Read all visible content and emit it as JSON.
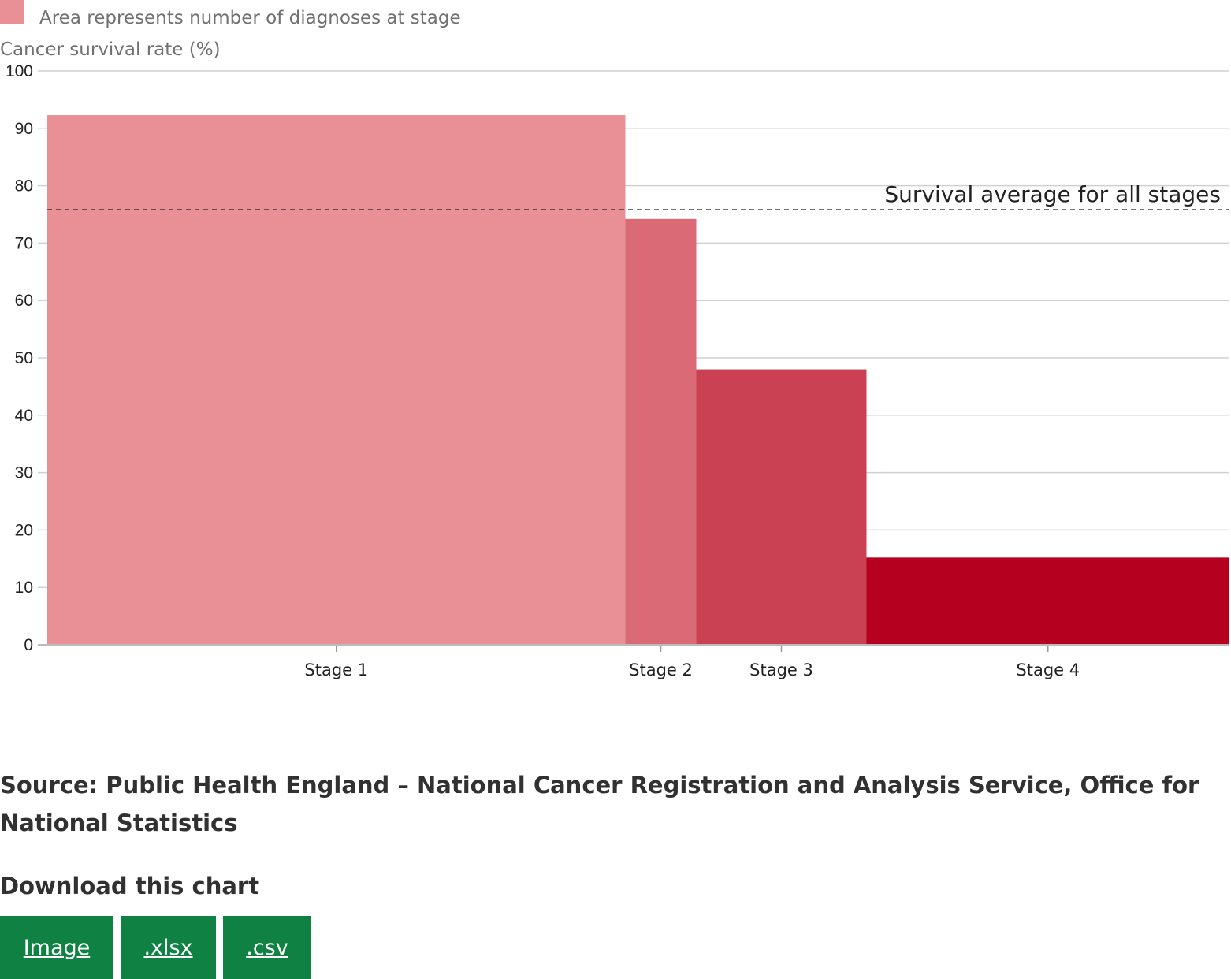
{
  "legend": {
    "label": "Area represents number of diagnoses at stage",
    "color": "#e89096"
  },
  "chart_data": {
    "type": "bar",
    "subtype": "variable-width bar (mosaic)",
    "ylabel": "Cancer survival rate (%)",
    "xlabel": "",
    "ylim": [
      0,
      100
    ],
    "yticks": [
      0,
      10,
      20,
      30,
      40,
      50,
      60,
      70,
      80,
      90,
      100
    ],
    "grid": true,
    "categories": [
      "Stage 1",
      "Stage 2",
      "Stage 3",
      "Stage 4"
    ],
    "values": [
      92.3,
      74.2,
      48.0,
      15.2
    ],
    "relative_diagnoses": [
      48.9,
      6.0,
      14.4,
      30.7
    ],
    "colors": [
      "#e89096",
      "#da6a76",
      "#c94152",
      "#b5001f"
    ],
    "reference_line": {
      "label": "Survival average for all stages",
      "value": 75.8
    }
  },
  "source": "Source: Public Health England – National Cancer Registration and Analysis Service, Office for National Statistics",
  "download": {
    "title": "Download this chart",
    "buttons": [
      {
        "label": "Image"
      },
      {
        "label": ".xlsx"
      },
      {
        "label": ".csv"
      }
    ]
  }
}
